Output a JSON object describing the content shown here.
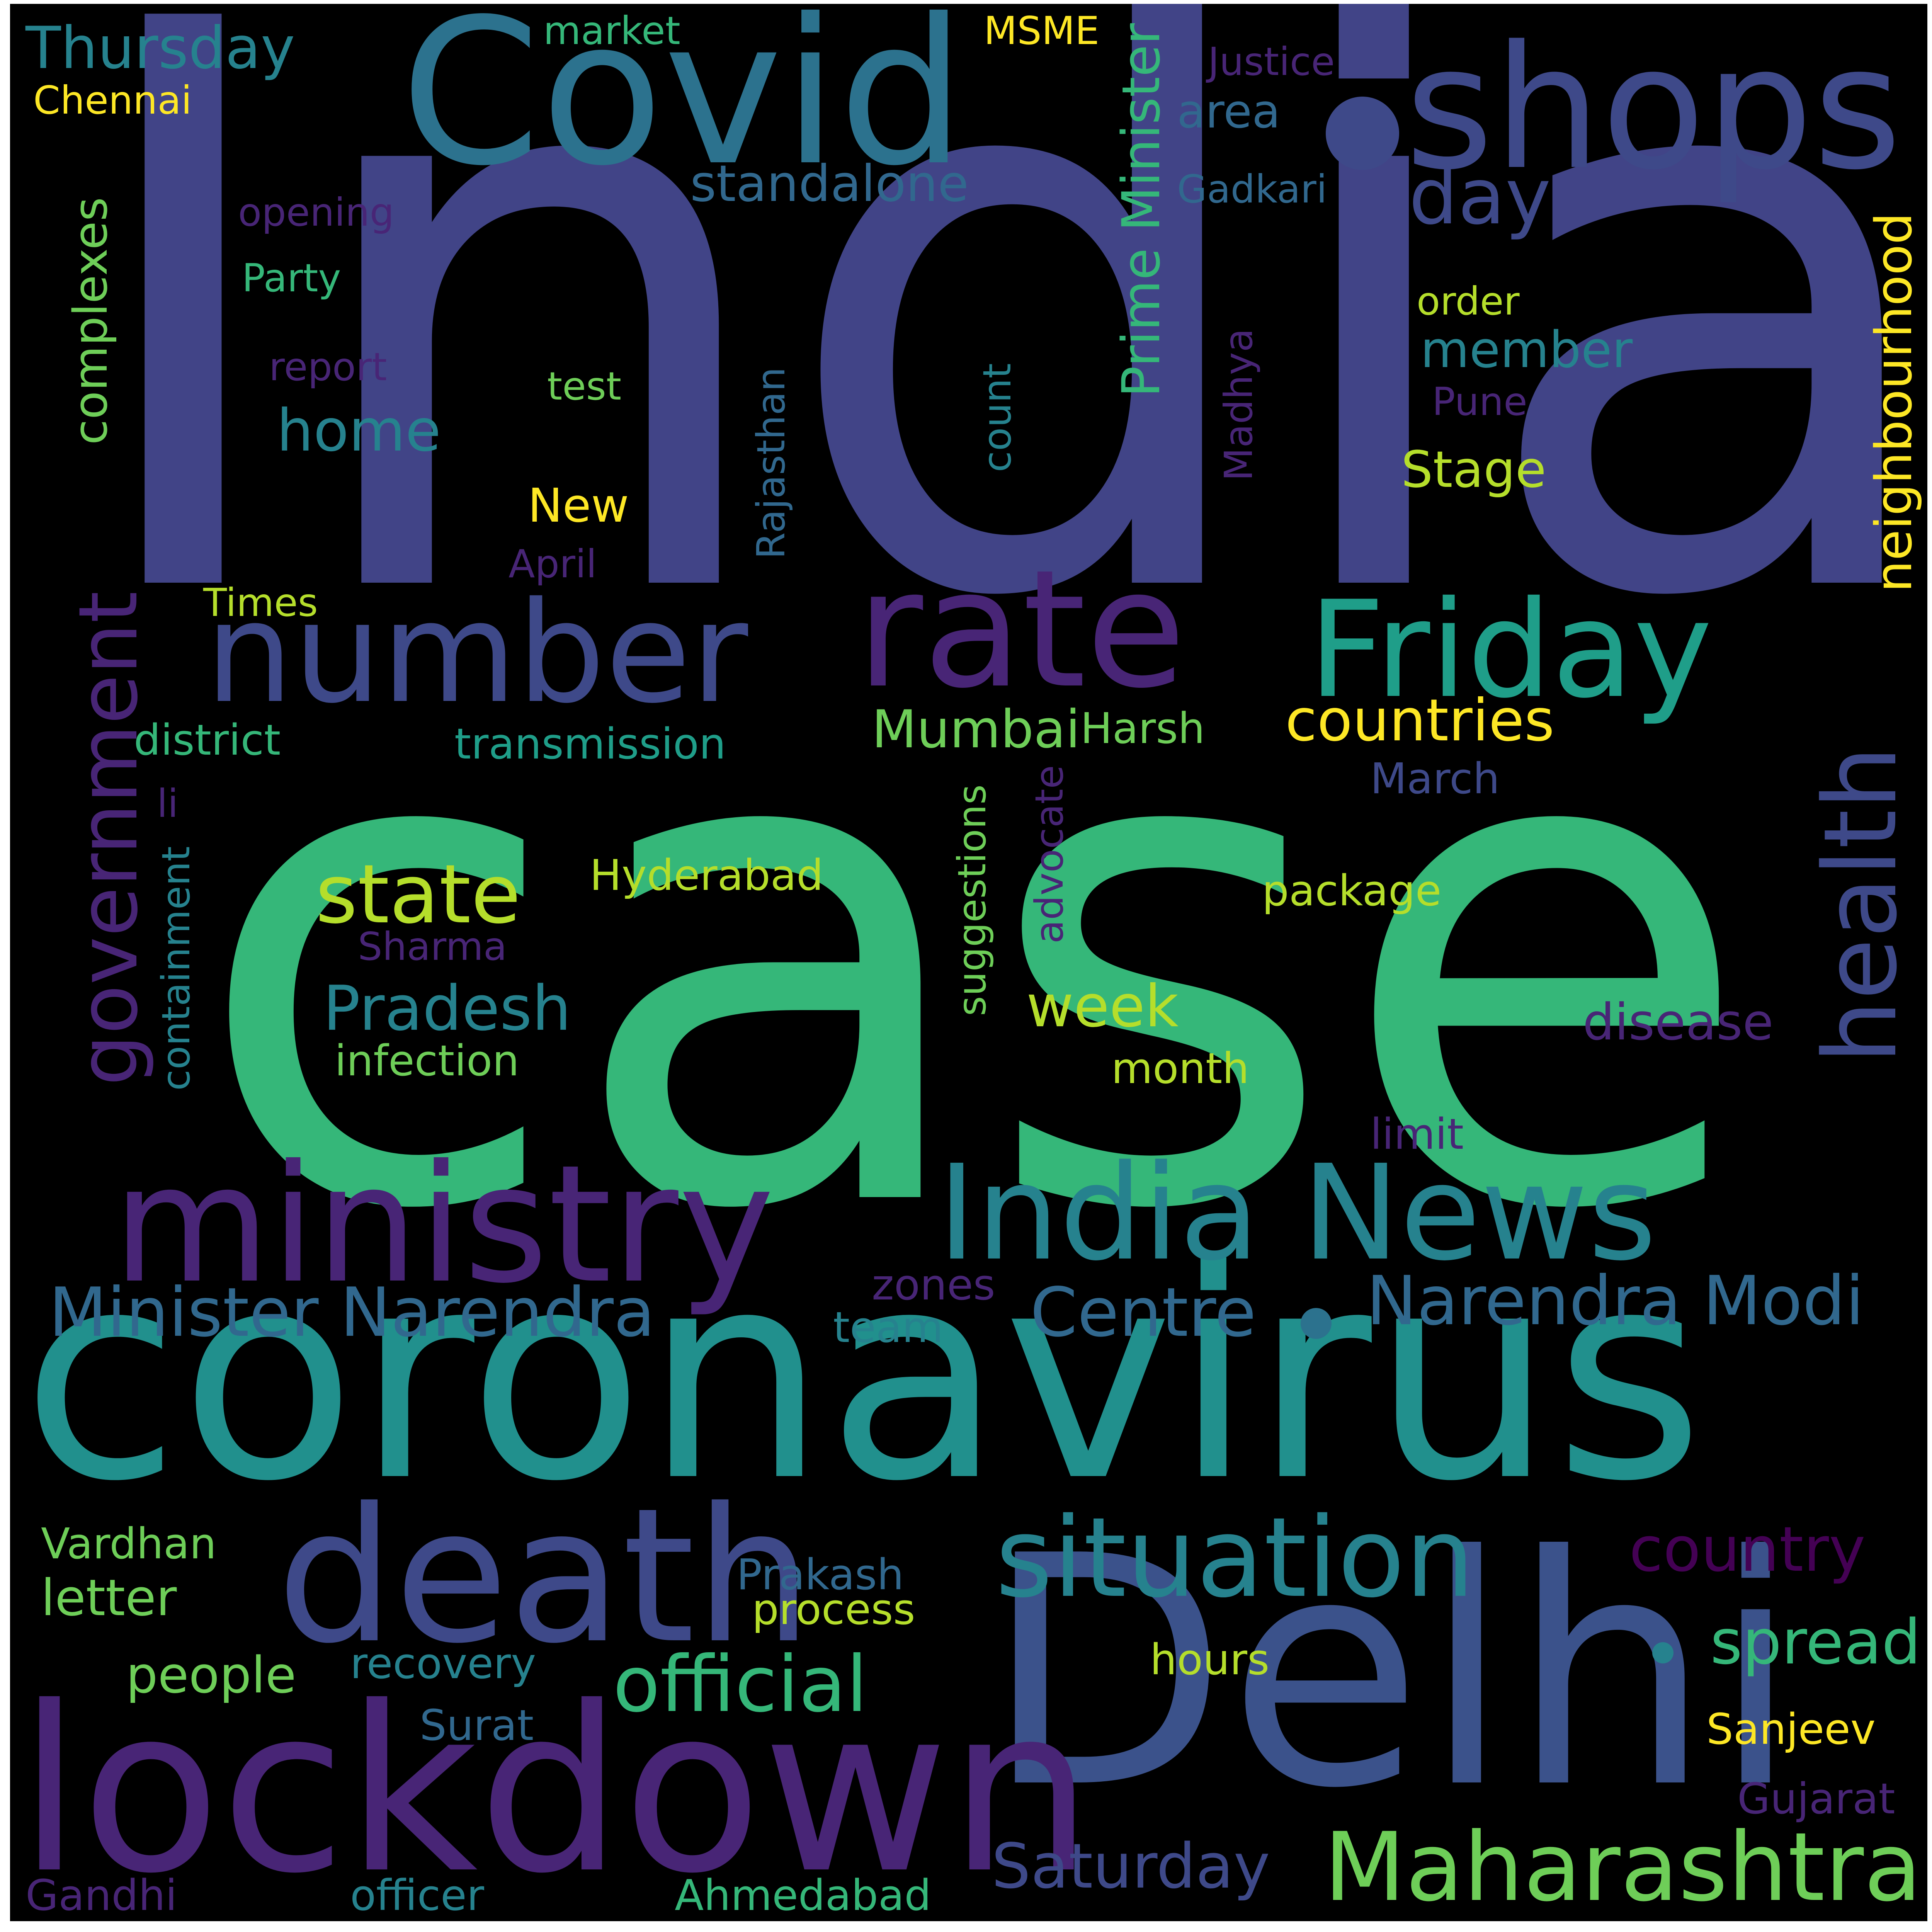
{
  "palette": {
    "background": "#000000",
    "indigo": "#414487",
    "purple": "#482576",
    "blue": "#31688e",
    "teal": "#26828e",
    "green": "#35b779",
    "lightgreen": "#6ece58",
    "yellowgreen": "#b5de2b",
    "yellow": "#fde725",
    "navy": "#3e4989"
  },
  "words": {
    "india": "India",
    "case": "case",
    "coronavirus": "coronavirus",
    "covid": "Covid",
    "shops": "shops",
    "delhi": "Delhi",
    "lockdown": "lockdown",
    "ministry": "ministry",
    "death": "death",
    "number": "number",
    "rate": "rate",
    "friday": "Friday",
    "india_news": "India News",
    "situation": "situation",
    "maharashtra": "Maharashtra",
    "health": "health",
    "minister_narendra": "Minister Narendra",
    "narendra_modi": "Narendra Modi",
    "centre": "Centre",
    "state": "state",
    "government": "government",
    "complexes": "complexes",
    "prime_minister": "Prime Minister",
    "neighbourhood": "neighbourhood",
    "countries": "countries",
    "official": "official",
    "spread": "spread",
    "country": "country",
    "saturday": "Saturday",
    "pradesh": "Pradesh",
    "home": "home",
    "standalone": "standalone",
    "day": "day",
    "mumbai": "Mumbai",
    "stage": "Stage",
    "member": "member",
    "thursday": "Thursday",
    "week": "week",
    "disease": "disease",
    "letter": "letter",
    "people": "people",
    "hyderabad": "Hyderabad",
    "transmission": "transmission",
    "district": "district",
    "harsh": "Harsh",
    "march": "March",
    "package": "package",
    "sharma": "Sharma",
    "infection": "infection",
    "month": "month",
    "limit": "limit",
    "zones": "zones",
    "team": "team",
    "vardhan": "Vardhan",
    "prakash": "Prakash",
    "process": "process",
    "hours": "hours",
    "recovery": "recovery",
    "surat": "Surat",
    "sanjeev": "Sanjeev",
    "gujarat": "Gujarat",
    "gandhi": "Gandhi",
    "officer": "officer",
    "ahmedabad": "Ahmedabad",
    "market": "market",
    "msme": "MSME",
    "chennai": "Chennai",
    "justice": "Justice",
    "area": "area",
    "gadkari": "Gadkari",
    "opening": "opening",
    "party": "Party",
    "report": "report",
    "test": "test",
    "order": "order",
    "pune": "Pune",
    "new": "New",
    "april": "April",
    "times": "Times",
    "li": "li",
    "count": "count",
    "madhya": "Madhya",
    "rajasthan": "Rajasthan",
    "containment": "containment",
    "suggestions": "suggestions",
    "advocate": "advocate"
  }
}
